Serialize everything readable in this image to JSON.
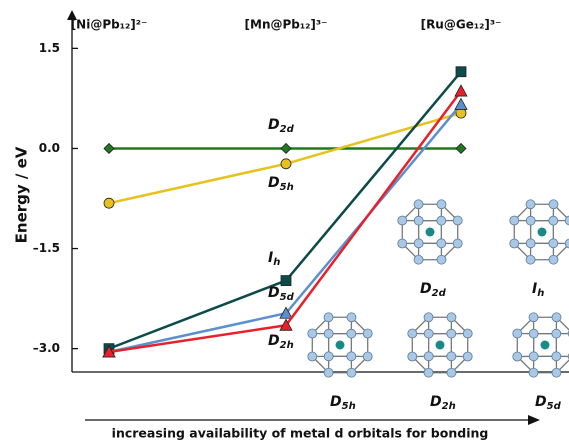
{
  "chart_data": {
    "type": "line",
    "y_label": "Energy / eV",
    "x_label": "increasing availability of metal d orbitals for bonding",
    "categories": [
      "[Ni@Pb₁₂]²⁻",
      "[Mn@Pb₁₂]³⁻",
      "[Ru@Ge₁₂]³⁻"
    ],
    "ylim": [
      -3.35,
      2.0
    ],
    "yticks": [
      1.5,
      {
        "value": 0,
        "label": "0.0"
      },
      {
        "value": -1.5,
        "label": "–1.5"
      },
      {
        "value": -3.0,
        "label": "–3.0"
      }
    ],
    "series": [
      {
        "name": "D2d",
        "color": "#1f7a1f",
        "marker": "diamond",
        "values": [
          0,
          0,
          0
        ]
      },
      {
        "name": "D5h",
        "color": "#e8c21c",
        "marker": "circle",
        "values": [
          -0.82,
          -0.23,
          0.53
        ]
      },
      {
        "name": "Ih",
        "color": "#0d4a4a",
        "marker": "square",
        "values": [
          -3.0,
          -1.98,
          1.15
        ]
      },
      {
        "name": "D5d",
        "color": "#5b8fd0",
        "marker": "triangle",
        "values": [
          -3.05,
          -2.47,
          0.66
        ]
      },
      {
        "name": "D2h",
        "color": "#e8202a",
        "marker": "triangle",
        "values": [
          -3.05,
          -2.65,
          0.86
        ]
      }
    ],
    "annotations": [
      "D2d",
      "Ih",
      "D5h",
      "D2h",
      "D5d"
    ]
  }
}
